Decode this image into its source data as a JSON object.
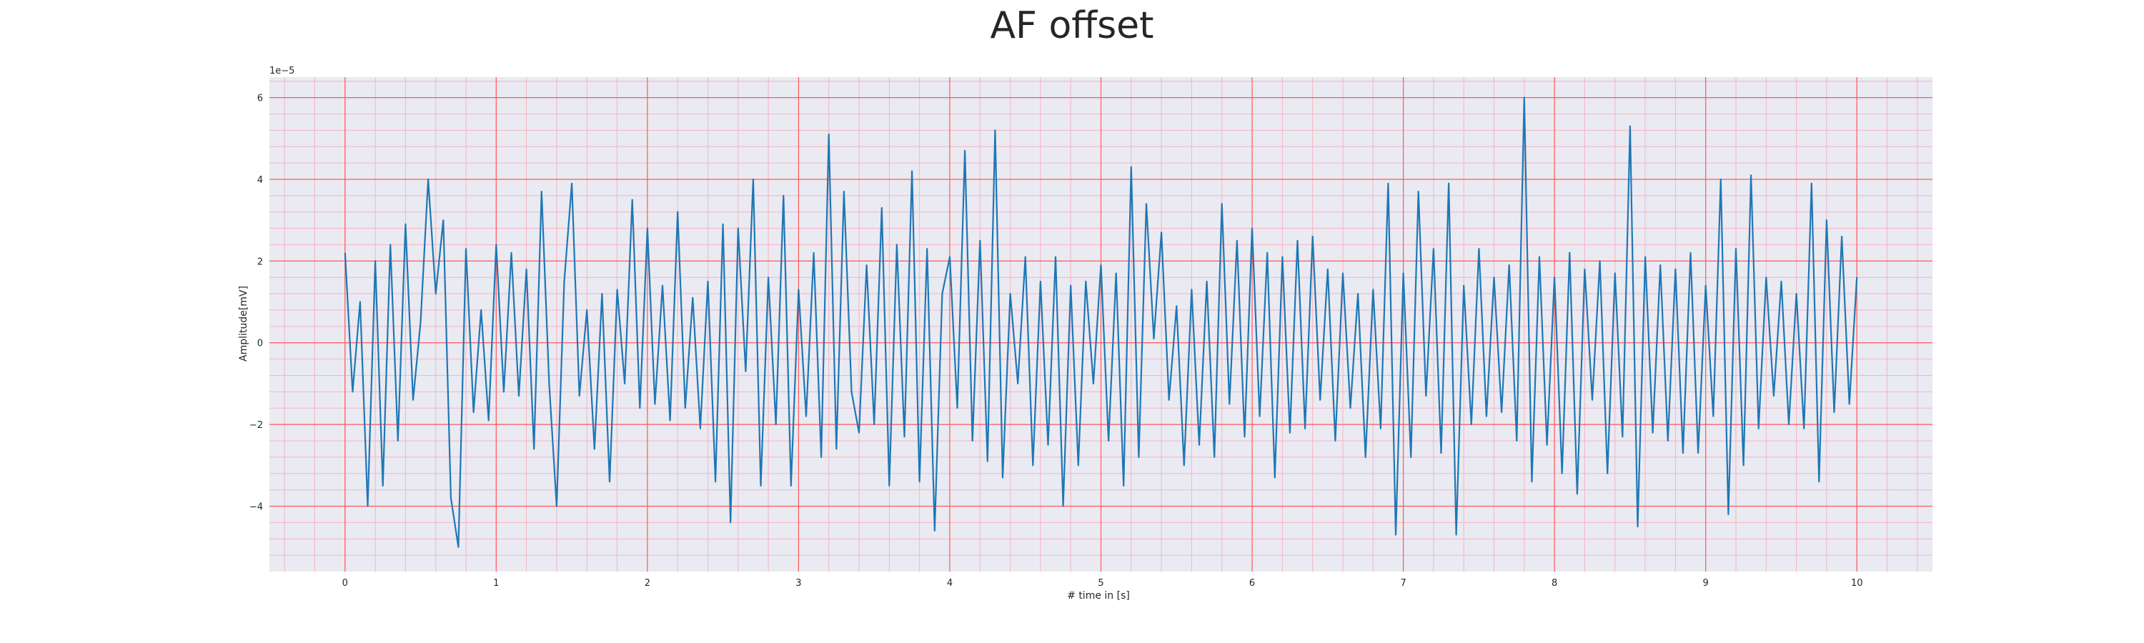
{
  "chart_data": {
    "type": "line",
    "title": "AF offset",
    "xlabel": "# time in [s]",
    "ylabel": "Amplitude[mV]",
    "y_offset_label": "1e−5",
    "xlim": [
      -0.5,
      10.5
    ],
    "ylim": [
      -5.6,
      6.5
    ],
    "x_ticks": [
      0,
      1,
      2,
      3,
      4,
      5,
      6,
      7,
      8,
      9,
      10
    ],
    "x_tick_labels": [
      "0",
      "1",
      "2",
      "3",
      "4",
      "5",
      "6",
      "7",
      "8",
      "9",
      "10"
    ],
    "y_ticks": [
      -4,
      -2,
      0,
      2,
      4,
      6
    ],
    "y_tick_labels": [
      "−4",
      "−2",
      "0",
      "2",
      "4",
      "6"
    ],
    "grid": true,
    "minor_grid": true,
    "colors": {
      "line": "#1f77b4",
      "plot_background": "#eaeaf2",
      "major_grid": "#ff5a5a",
      "minor_grid": "#f5b4c0"
    },
    "series": [
      {
        "x": [
          0.0,
          0.05,
          0.1,
          0.15,
          0.2,
          0.25,
          0.3,
          0.35,
          0.4,
          0.45,
          0.5,
          0.55,
          0.6,
          0.65,
          0.7,
          0.75,
          0.8,
          0.85,
          0.9,
          0.95,
          1.0,
          1.05,
          1.1,
          1.15,
          1.2,
          1.25,
          1.3,
          1.35,
          1.4,
          1.45,
          1.5,
          1.55,
          1.6,
          1.65,
          1.7,
          1.75,
          1.8,
          1.85,
          1.9,
          1.95,
          2.0,
          2.05,
          2.1,
          2.15,
          2.2,
          2.25,
          2.3,
          2.35,
          2.4,
          2.45,
          2.5,
          2.55,
          2.6,
          2.65,
          2.7,
          2.75,
          2.8,
          2.85,
          2.9,
          2.95,
          3.0,
          3.05,
          3.1,
          3.15,
          3.2,
          3.25,
          3.3,
          3.35,
          3.4,
          3.45,
          3.5,
          3.55,
          3.6,
          3.65,
          3.7,
          3.75,
          3.8,
          3.85,
          3.9,
          3.95,
          4.0,
          4.05,
          4.1,
          4.15,
          4.2,
          4.25,
          4.3,
          4.35,
          4.4,
          4.45,
          4.5,
          4.55,
          4.6,
          4.65,
          4.7,
          4.75,
          4.8,
          4.85,
          4.9,
          4.95,
          5.0,
          5.05,
          5.1,
          5.15,
          5.2,
          5.25,
          5.3,
          5.35,
          5.4,
          5.45,
          5.5,
          5.55,
          5.6,
          5.65,
          5.7,
          5.75,
          5.8,
          5.85,
          5.9,
          5.95,
          6.0,
          6.05,
          6.1,
          6.15,
          6.2,
          6.25,
          6.3,
          6.35,
          6.4,
          6.45,
          6.5,
          6.55,
          6.6,
          6.65,
          6.7,
          6.75,
          6.8,
          6.85,
          6.9,
          6.95,
          7.0,
          7.05,
          7.1,
          7.15,
          7.2,
          7.25,
          7.3,
          7.35,
          7.4,
          7.45,
          7.5,
          7.55,
          7.6,
          7.65,
          7.7,
          7.75,
          7.8,
          7.85,
          7.9,
          7.95,
          8.0,
          8.05,
          8.1,
          8.15,
          8.2,
          8.25,
          8.3,
          8.35,
          8.4,
          8.45,
          8.5,
          8.55,
          8.6,
          8.65,
          8.7,
          8.75,
          8.8,
          8.85,
          8.9,
          8.95,
          9.0,
          9.05,
          9.1,
          9.15,
          9.2,
          9.25,
          9.3,
          9.35,
          9.4,
          9.45,
          9.5,
          9.55,
          9.6,
          9.65,
          9.7,
          9.75,
          9.8,
          9.85,
          9.9,
          9.95,
          10.0
        ],
        "values": [
          2.2,
          -1.2,
          1.0,
          -4.0,
          2.0,
          -3.5,
          2.4,
          -2.4,
          2.9,
          -1.4,
          0.5,
          4.0,
          1.2,
          3.0,
          -3.8,
          -5.0,
          2.3,
          -1.7,
          0.8,
          -1.9,
          2.4,
          -1.2,
          2.2,
          -1.3,
          1.8,
          -2.6,
          3.7,
          -1.0,
          -4.0,
          1.5,
          3.9,
          -1.3,
          0.8,
          -2.6,
          1.2,
          -3.4,
          1.3,
          -1.0,
          3.5,
          -1.6,
          2.8,
          -1.5,
          1.4,
          -1.9,
          3.2,
          -1.6,
          1.1,
          -2.1,
          1.5,
          -3.4,
          2.9,
          -4.4,
          2.8,
          -0.7,
          4.0,
          -3.5,
          1.6,
          -2.0,
          3.6,
          -3.5,
          1.3,
          -1.8,
          2.2,
          -2.8,
          5.1,
          -2.6,
          3.7,
          -1.2,
          -2.2,
          1.9,
          -2.0,
          3.3,
          -3.5,
          2.4,
          -2.3,
          4.2,
          -3.4,
          2.3,
          -4.6,
          1.2,
          2.1,
          -1.6,
          4.7,
          -2.4,
          2.5,
          -2.9,
          5.2,
          -3.3,
          1.2,
          -1.0,
          2.1,
          -3.0,
          1.5,
          -2.5,
          2.1,
          -4.0,
          1.4,
          -3.0,
          1.5,
          -1.0,
          1.9,
          -2.4,
          1.7,
          -3.5,
          4.3,
          -2.8,
          3.4,
          0.1,
          2.7,
          -1.4,
          0.9,
          -3.0,
          1.3,
          -2.5,
          1.5,
          -2.8,
          3.4,
          -1.5,
          2.5,
          -2.3,
          2.8,
          -1.8,
          2.2,
          -3.3,
          2.1,
          -2.2,
          2.5,
          -2.1,
          2.6,
          -1.4,
          1.8,
          -2.4,
          1.7,
          -1.6,
          1.2,
          -2.8,
          1.3,
          -2.1,
          3.9,
          -4.7,
          1.7,
          -2.8,
          3.7,
          -1.3,
          2.3,
          -2.7,
          3.9,
          -4.7,
          1.4,
          -2.0,
          2.3,
          -1.8,
          1.6,
          -1.7,
          1.9,
          -2.4,
          6.0,
          -3.4,
          2.1,
          -2.5,
          1.6,
          -3.2,
          2.2,
          -3.7,
          1.8,
          -1.4,
          2.0,
          -3.2,
          1.7,
          -2.3,
          5.3,
          -4.5,
          2.1,
          -2.2,
          1.9,
          -2.4,
          1.8,
          -2.7,
          2.2,
          -2.7,
          1.4,
          -1.8,
          4.0,
          -4.2,
          2.3,
          -3.0,
          4.1,
          -2.1,
          1.6,
          -1.3,
          1.5,
          -2.0,
          1.2,
          -2.1,
          3.9,
          -3.4,
          3.0,
          -1.7,
          2.6,
          -1.5,
          1.6
        ]
      }
    ]
  }
}
